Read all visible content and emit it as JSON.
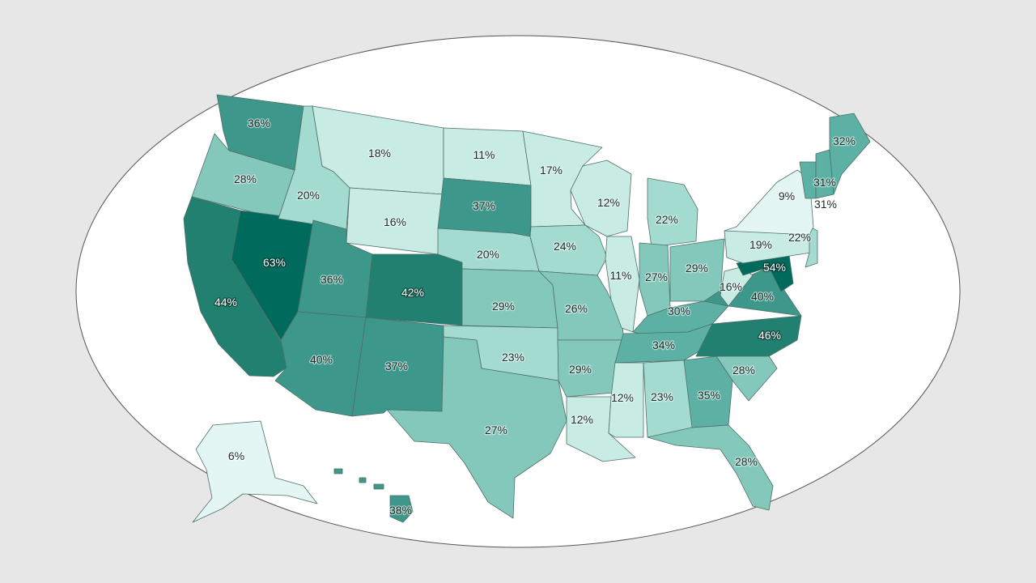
{
  "colors": {
    "page_background": "#e7e7e7",
    "ellipse_fill": "#ffffff",
    "ellipse_stroke": "#555555",
    "state_stroke": "#4f6f69",
    "scale": [
      "#e3f6f3",
      "#c8ebe4",
      "#a4dbd0",
      "#84c8bc",
      "#5cb1a4",
      "#3d978a",
      "#21806f",
      "#006b5c"
    ]
  },
  "states": [
    {
      "id": "WA",
      "name": "Washington",
      "value": "36%"
    },
    {
      "id": "OR",
      "name": "Oregon",
      "value": "28%"
    },
    {
      "id": "CA",
      "name": "California",
      "value": "44%"
    },
    {
      "id": "NV",
      "name": "Nevada",
      "value": "63%"
    },
    {
      "id": "ID",
      "name": "Idaho",
      "value": "20%"
    },
    {
      "id": "MT",
      "name": "Montana",
      "value": "18%"
    },
    {
      "id": "WY",
      "name": "Wyoming",
      "value": "16%"
    },
    {
      "id": "UT",
      "name": "Utah",
      "value": "36%"
    },
    {
      "id": "AZ",
      "name": "Arizona",
      "value": "40%"
    },
    {
      "id": "CO",
      "name": "Colorado",
      "value": "42%"
    },
    {
      "id": "NM",
      "name": "New Mexico",
      "value": "37%"
    },
    {
      "id": "ND",
      "name": "North Dakota",
      "value": "11%"
    },
    {
      "id": "SD",
      "name": "South Dakota",
      "value": "37%"
    },
    {
      "id": "NE",
      "name": "Nebraska",
      "value": "20%"
    },
    {
      "id": "KS",
      "name": "Kansas",
      "value": "29%"
    },
    {
      "id": "OK",
      "name": "Oklahoma",
      "value": "23%"
    },
    {
      "id": "TX",
      "name": "Texas",
      "value": "27%"
    },
    {
      "id": "MN",
      "name": "Minnesota",
      "value": "17%"
    },
    {
      "id": "IA",
      "name": "Iowa",
      "value": "24%"
    },
    {
      "id": "MO",
      "name": "Missouri",
      "value": "26%"
    },
    {
      "id": "AR",
      "name": "Arkansas",
      "value": "29%"
    },
    {
      "id": "LA",
      "name": "Louisiana",
      "value": "12%"
    },
    {
      "id": "WI",
      "name": "Wisconsin",
      "value": "12%"
    },
    {
      "id": "IL",
      "name": "Illinois",
      "value": "11%"
    },
    {
      "id": "MI",
      "name": "Michigan",
      "value": "22%"
    },
    {
      "id": "IN",
      "name": "Indiana",
      "value": "27%"
    },
    {
      "id": "OH",
      "name": "Ohio",
      "value": "29%"
    },
    {
      "id": "KY",
      "name": "Kentucky",
      "value": "30%"
    },
    {
      "id": "TN",
      "name": "Tennessee",
      "value": "34%"
    },
    {
      "id": "MS",
      "name": "Mississippi",
      "value": "12%"
    },
    {
      "id": "AL",
      "name": "Alabama",
      "value": "23%"
    },
    {
      "id": "GA",
      "name": "Georgia",
      "value": "35%"
    },
    {
      "id": "FL",
      "name": "Florida",
      "value": "28%"
    },
    {
      "id": "SC",
      "name": "South Carolina",
      "value": "28%"
    },
    {
      "id": "NC",
      "name": "North Carolina",
      "value": "46%"
    },
    {
      "id": "VA",
      "name": "Virginia",
      "value": "40%"
    },
    {
      "id": "WV",
      "name": "West Virginia",
      "value": "16%"
    },
    {
      "id": "MD",
      "name": "Maryland",
      "value": "54%"
    },
    {
      "id": "PA",
      "name": "Pennsylvania",
      "value": "19%"
    },
    {
      "id": "NJ",
      "name": "New Jersey",
      "value": "22%"
    },
    {
      "id": "NY",
      "name": "New York",
      "value": "9%"
    },
    {
      "id": "VT",
      "name": "Vermont",
      "value": "31%"
    },
    {
      "id": "NH",
      "name": "New Hampshire",
      "value": "31%"
    },
    {
      "id": "ME",
      "name": "Maine",
      "value": "32%"
    },
    {
      "id": "AK",
      "name": "Alaska",
      "value": "6%"
    },
    {
      "id": "HI",
      "name": "Hawaii",
      "value": "38%"
    }
  ]
}
